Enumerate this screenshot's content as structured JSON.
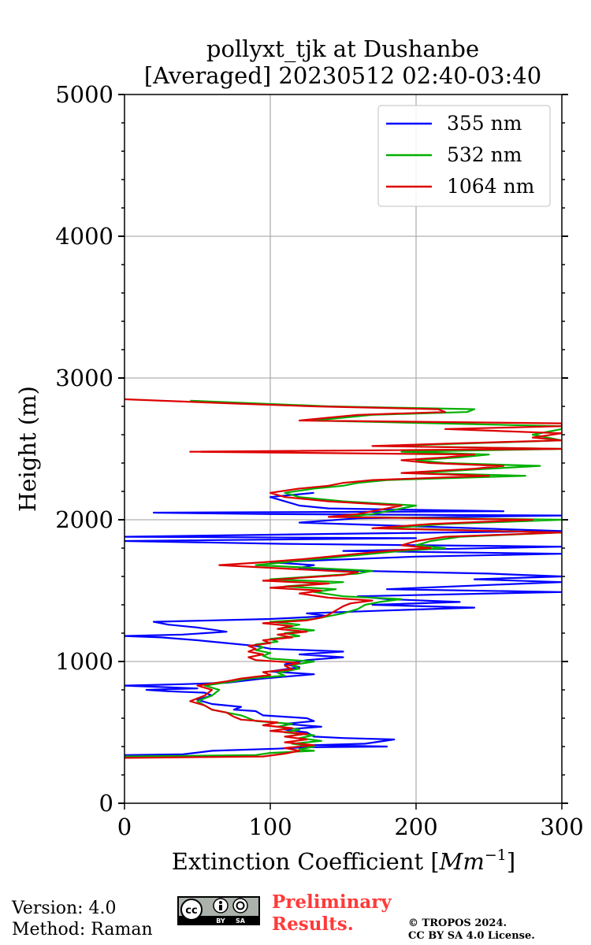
{
  "chart_data": {
    "type": "line",
    "title_line1": "pollyxt_tjk at Dushanbe",
    "title_line2": "[Averaged] 20230512 02:40-03:40",
    "xlabel": "Extinction Coefficient [",
    "xlabel_unit": "Mm",
    "xlabel_exp": "−1",
    "xlabel_close": "]",
    "ylabel": "Height (m)",
    "xlim": [
      0,
      300
    ],
    "ylim": [
      0,
      5000
    ],
    "xticks": [
      "0",
      "100",
      "200",
      "300"
    ],
    "yticks": [
      "0",
      "1000",
      "2000",
      "3000",
      "4000",
      "5000"
    ],
    "grid": true,
    "legend_position": "top-right",
    "series": [
      {
        "name": "355 nm",
        "color": "#0000ff",
        "points": [
          [
            0,
            340
          ],
          [
            40,
            345
          ],
          [
            60,
            370
          ],
          [
            105,
            385
          ],
          [
            125,
            395
          ],
          [
            180,
            400
          ],
          [
            130,
            410
          ],
          [
            165,
            420
          ],
          [
            185,
            450
          ],
          [
            150,
            460
          ],
          [
            130,
            470
          ],
          [
            125,
            500
          ],
          [
            110,
            520
          ],
          [
            135,
            540
          ],
          [
            110,
            560
          ],
          [
            130,
            580
          ],
          [
            125,
            600
          ],
          [
            95,
            620
          ],
          [
            90,
            650
          ],
          [
            75,
            660
          ],
          [
            80,
            680
          ],
          [
            60,
            700
          ],
          [
            50,
            730
          ],
          [
            60,
            760
          ],
          [
            55,
            780
          ],
          [
            30,
            790
          ],
          [
            15,
            800
          ],
          [
            50,
            810
          ],
          [
            0,
            830
          ],
          [
            40,
            840
          ],
          [
            70,
            850
          ],
          [
            95,
            880
          ],
          [
            130,
            910
          ],
          [
            100,
            930
          ],
          [
            120,
            960
          ],
          [
            110,
            980
          ],
          [
            125,
            1010
          ],
          [
            150,
            1030
          ],
          [
            120,
            1050
          ],
          [
            150,
            1070
          ],
          [
            100,
            1090
          ],
          [
            90,
            1110
          ],
          [
            70,
            1130
          ],
          [
            50,
            1150
          ],
          [
            25,
            1170
          ],
          [
            0,
            1180
          ],
          [
            40,
            1190
          ],
          [
            70,
            1210
          ],
          [
            50,
            1240
          ],
          [
            30,
            1260
          ],
          [
            20,
            1280
          ],
          [
            100,
            1300
          ],
          [
            140,
            1320
          ],
          [
            125,
            1340
          ],
          [
            180,
            1360
          ],
          [
            240,
            1380
          ],
          [
            170,
            1400
          ],
          [
            230,
            1420
          ],
          [
            180,
            1440
          ],
          [
            160,
            1460
          ],
          [
            300,
            1490
          ],
          [
            180,
            1510
          ],
          [
            250,
            1540
          ],
          [
            300,
            1560
          ],
          [
            240,
            1580
          ],
          [
            300,
            1600
          ],
          [
            250,
            1620
          ],
          [
            160,
            1640
          ],
          [
            120,
            1660
          ],
          [
            130,
            1680
          ],
          [
            100,
            1700
          ],
          [
            150,
            1720
          ],
          [
            200,
            1740
          ],
          [
            300,
            1760
          ],
          [
            150,
            1780
          ],
          [
            300,
            1810
          ],
          [
            110,
            1830
          ],
          [
            0,
            1850
          ],
          [
            200,
            1870
          ],
          [
            0,
            1880
          ],
          [
            140,
            1900
          ],
          [
            300,
            1920
          ],
          [
            210,
            1950
          ],
          [
            120,
            1980
          ],
          [
            160,
            2010
          ],
          [
            300,
            2030
          ],
          [
            100,
            2040
          ],
          [
            20,
            2050
          ],
          [
            260,
            2060
          ],
          [
            140,
            2080
          ],
          [
            120,
            2100
          ],
          [
            110,
            2130
          ],
          [
            100,
            2160
          ],
          [
            130,
            2190
          ]
        ]
      },
      {
        "name": "532 nm",
        "color": "#00b000",
        "points": [
          [
            0,
            330
          ],
          [
            90,
            340
          ],
          [
            100,
            355
          ],
          [
            130,
            370
          ],
          [
            120,
            380
          ],
          [
            130,
            400
          ],
          [
            115,
            420
          ],
          [
            135,
            440
          ],
          [
            120,
            460
          ],
          [
            130,
            480
          ],
          [
            110,
            500
          ],
          [
            120,
            520
          ],
          [
            105,
            540
          ],
          [
            115,
            560
          ],
          [
            90,
            580
          ],
          [
            85,
            600
          ],
          [
            80,
            620
          ],
          [
            70,
            640
          ],
          [
            60,
            660
          ],
          [
            55,
            690
          ],
          [
            50,
            720
          ],
          [
            60,
            760
          ],
          [
            65,
            800
          ],
          [
            55,
            830
          ],
          [
            75,
            860
          ],
          [
            85,
            880
          ],
          [
            110,
            900
          ],
          [
            105,
            920
          ],
          [
            120,
            950
          ],
          [
            115,
            975
          ],
          [
            130,
            1000
          ],
          [
            100,
            1020
          ],
          [
            95,
            1040
          ],
          [
            100,
            1060
          ],
          [
            90,
            1080
          ],
          [
            95,
            1100
          ],
          [
            90,
            1120
          ],
          [
            105,
            1140
          ],
          [
            100,
            1160
          ],
          [
            120,
            1180
          ],
          [
            110,
            1200
          ],
          [
            130,
            1220
          ],
          [
            110,
            1240
          ],
          [
            120,
            1260
          ],
          [
            100,
            1280
          ],
          [
            130,
            1300
          ],
          [
            140,
            1320
          ],
          [
            150,
            1340
          ],
          [
            160,
            1370
          ],
          [
            165,
            1400
          ],
          [
            175,
            1420
          ],
          [
            190,
            1440
          ],
          [
            150,
            1460
          ],
          [
            130,
            1490
          ],
          [
            145,
            1510
          ],
          [
            110,
            1530
          ],
          [
            150,
            1560
          ],
          [
            100,
            1580
          ],
          [
            130,
            1600
          ],
          [
            160,
            1620
          ],
          [
            170,
            1640
          ],
          [
            130,
            1660
          ],
          [
            90,
            1680
          ],
          [
            110,
            1700
          ],
          [
            130,
            1720
          ],
          [
            150,
            1740
          ],
          [
            170,
            1760
          ],
          [
            190,
            1780
          ],
          [
            220,
            1800
          ],
          [
            200,
            1820
          ],
          [
            210,
            1850
          ],
          [
            230,
            1880
          ],
          [
            300,
            1910
          ],
          [
            180,
            1940
          ],
          [
            220,
            1970
          ],
          [
            300,
            2000
          ],
          [
            150,
            2020
          ],
          [
            170,
            2040
          ],
          [
            180,
            2060
          ],
          [
            190,
            2080
          ],
          [
            200,
            2100
          ],
          [
            150,
            2130
          ],
          [
            120,
            2160
          ],
          [
            110,
            2190
          ],
          [
            130,
            2220
          ],
          [
            150,
            2240
          ],
          [
            160,
            2260
          ],
          [
            180,
            2280
          ],
          [
            275,
            2310
          ],
          [
            200,
            2330
          ],
          [
            250,
            2360
          ],
          [
            285,
            2380
          ],
          [
            220,
            2400
          ],
          [
            200,
            2420
          ],
          [
            230,
            2440
          ],
          [
            250,
            2460
          ],
          [
            190,
            2480
          ],
          [
            300,
            2500
          ],
          [
            180,
            2520
          ],
          [
            240,
            2540
          ],
          [
            300,
            2560
          ],
          [
            290,
            2580
          ],
          [
            280,
            2600
          ],
          [
            300,
            2640
          ],
          [
            300,
            2660
          ],
          [
            130,
            2700
          ],
          [
            150,
            2720
          ],
          [
            170,
            2740
          ],
          [
            235,
            2760
          ],
          [
            240,
            2780
          ],
          [
            140,
            2800
          ],
          [
            45,
            2840
          ]
        ]
      },
      {
        "name": "1064 nm",
        "color": "#dd0000",
        "points": [
          [
            0,
            320
          ],
          [
            95,
            330
          ],
          [
            110,
            350
          ],
          [
            120,
            370
          ],
          [
            110,
            390
          ],
          [
            130,
            410
          ],
          [
            110,
            430
          ],
          [
            125,
            450
          ],
          [
            110,
            470
          ],
          [
            125,
            490
          ],
          [
            100,
            510
          ],
          [
            115,
            530
          ],
          [
            95,
            550
          ],
          [
            105,
            570
          ],
          [
            80,
            590
          ],
          [
            75,
            610
          ],
          [
            70,
            640
          ],
          [
            60,
            660
          ],
          [
            55,
            690
          ],
          [
            45,
            720
          ],
          [
            55,
            760
          ],
          [
            60,
            800
          ],
          [
            50,
            830
          ],
          [
            70,
            860
          ],
          [
            80,
            880
          ],
          [
            100,
            905
          ],
          [
            95,
            925
          ],
          [
            115,
            945
          ],
          [
            110,
            970
          ],
          [
            120,
            990
          ],
          [
            90,
            1010
          ],
          [
            85,
            1030
          ],
          [
            95,
            1050
          ],
          [
            85,
            1070
          ],
          [
            90,
            1090
          ],
          [
            85,
            1110
          ],
          [
            100,
            1130
          ],
          [
            95,
            1150
          ],
          [
            115,
            1170
          ],
          [
            105,
            1190
          ],
          [
            125,
            1210
          ],
          [
            105,
            1230
          ],
          [
            115,
            1250
          ],
          [
            95,
            1270
          ],
          [
            125,
            1290
          ],
          [
            135,
            1310
          ],
          [
            140,
            1330
          ],
          [
            145,
            1360
          ],
          [
            150,
            1390
          ],
          [
            155,
            1410
          ],
          [
            170,
            1430
          ],
          [
            140,
            1450
          ],
          [
            120,
            1480
          ],
          [
            135,
            1500
          ],
          [
            100,
            1520
          ],
          [
            140,
            1550
          ],
          [
            95,
            1570
          ],
          [
            120,
            1590
          ],
          [
            150,
            1610
          ],
          [
            160,
            1630
          ],
          [
            120,
            1650
          ],
          [
            65,
            1680
          ],
          [
            95,
            1700
          ],
          [
            120,
            1720
          ],
          [
            140,
            1740
          ],
          [
            160,
            1760
          ],
          [
            180,
            1780
          ],
          [
            210,
            1800
          ],
          [
            190,
            1820
          ],
          [
            200,
            1850
          ],
          [
            220,
            1880
          ],
          [
            300,
            1910
          ],
          [
            170,
            1940
          ],
          [
            210,
            1970
          ],
          [
            280,
            2000
          ],
          [
            140,
            2020
          ],
          [
            160,
            2040
          ],
          [
            170,
            2060
          ],
          [
            180,
            2080
          ],
          [
            190,
            2100
          ],
          [
            140,
            2130
          ],
          [
            110,
            2160
          ],
          [
            100,
            2190
          ],
          [
            120,
            2220
          ],
          [
            140,
            2240
          ],
          [
            150,
            2260
          ],
          [
            170,
            2280
          ],
          [
            250,
            2310
          ],
          [
            190,
            2330
          ],
          [
            240,
            2360
          ],
          [
            260,
            2380
          ],
          [
            210,
            2400
          ],
          [
            190,
            2420
          ],
          [
            220,
            2440
          ],
          [
            240,
            2460
          ],
          [
            45,
            2480
          ],
          [
            300,
            2500
          ],
          [
            170,
            2520
          ],
          [
            230,
            2540
          ],
          [
            300,
            2560
          ],
          [
            280,
            2580
          ],
          [
            300,
            2610
          ],
          [
            220,
            2640
          ],
          [
            300,
            2660
          ],
          [
            300,
            2680
          ],
          [
            120,
            2700
          ],
          [
            140,
            2720
          ],
          [
            160,
            2740
          ],
          [
            220,
            2760
          ],
          [
            215,
            2780
          ],
          [
            130,
            2800
          ],
          [
            75,
            2820
          ],
          [
            0,
            2850
          ]
        ]
      }
    ]
  },
  "footer": {
    "version": "Version: 4.0",
    "method": "Method: Raman",
    "preliminary_line1": "Preliminary",
    "preliminary_line2": "Results.",
    "copyright_line1": "© TROPOS 2024.",
    "copyright_line2": "CC BY SA 4.0 License.",
    "badge_by": "BY",
    "badge_sa": "SA",
    "badge_cc": "cc"
  }
}
